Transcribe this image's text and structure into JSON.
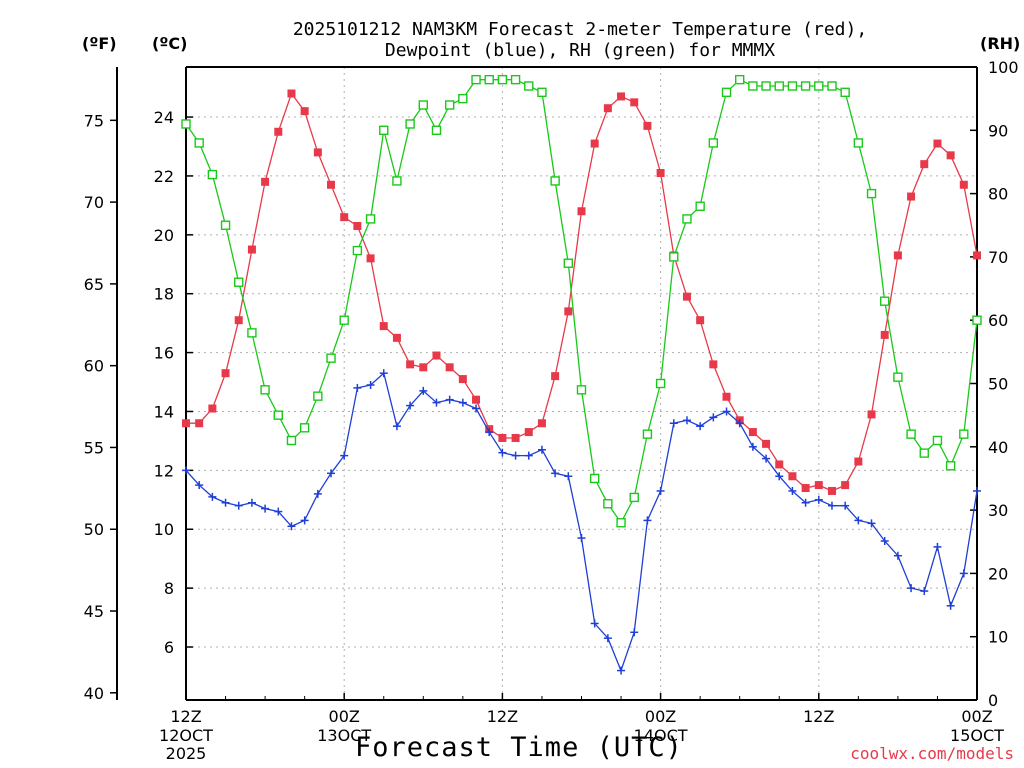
{
  "title_line1": "2025101212 NAM3KM Forecast 2-meter Temperature (red),",
  "title_line2": "Dewpoint (blue), RH (green) for MMMX",
  "unit_f": "(ºF)",
  "unit_c": "(ºC)",
  "unit_rh": "(RH)",
  "x_title": "Forecast Time (UTC)",
  "credit": "coolwx.com/models",
  "colors": {
    "temperature": "#e8394a",
    "dewpoint": "#1f3fd6",
    "rh": "#19c919"
  },
  "chart_data": {
    "type": "line",
    "x_label": "Forecast Time (UTC)",
    "x_hours": [
      0,
      1,
      2,
      3,
      4,
      5,
      6,
      7,
      8,
      9,
      10,
      11,
      12,
      13,
      14,
      15,
      16,
      17,
      18,
      19,
      20,
      21,
      22,
      23,
      24,
      25,
      26,
      27,
      28,
      29,
      30,
      31,
      32,
      33,
      34,
      35,
      36,
      37,
      38,
      39,
      40,
      41,
      42,
      43,
      44,
      45,
      46,
      47,
      48,
      49,
      50,
      51,
      52,
      53,
      54,
      55,
      56,
      57,
      58,
      59,
      60
    ],
    "xlim": [
      0,
      60
    ],
    "x_ticks": [
      {
        "hour": 0,
        "label1": "12Z",
        "label2": "12OCT",
        "label3": "2025"
      },
      {
        "hour": 12,
        "label1": "00Z",
        "label2": "13OCT",
        "label3": ""
      },
      {
        "hour": 24,
        "label1": "12Z",
        "label2": "",
        "label3": ""
      },
      {
        "hour": 36,
        "label1": "00Z",
        "label2": "14OCT",
        "label3": ""
      },
      {
        "hour": 48,
        "label1": "12Z",
        "label2": "",
        "label3": ""
      },
      {
        "hour": 60,
        "label1": "00Z",
        "label2": "15OCT",
        "label3": ""
      }
    ],
    "celsius_axis": {
      "range": [
        4.2,
        25.7
      ],
      "ticks": [
        6,
        8,
        10,
        12,
        14,
        16,
        18,
        20,
        22,
        24
      ]
    },
    "fahrenheit_axis": {
      "range": [
        39.56,
        78.26
      ],
      "ticks": [
        40,
        45,
        50,
        55,
        60,
        65,
        70,
        75
      ]
    },
    "rh_axis": {
      "range": [
        0,
        100
      ],
      "ticks": [
        0,
        10,
        20,
        30,
        40,
        50,
        60,
        70,
        80,
        90,
        100
      ]
    },
    "series": [
      {
        "name": "2-meter Temperature",
        "unit": "C",
        "marker": "filled-square",
        "values": [
          13.6,
          13.6,
          14.1,
          15.3,
          17.1,
          19.5,
          21.8,
          23.5,
          24.8,
          24.2,
          22.8,
          21.7,
          20.6,
          20.3,
          19.2,
          16.9,
          16.5,
          15.6,
          15.5,
          15.9,
          15.5,
          15.1,
          14.4,
          13.4,
          13.1,
          13.1,
          13.3,
          13.6,
          15.2,
          17.4,
          20.8,
          23.1,
          24.3,
          24.7,
          24.5,
          23.7,
          22.1,
          19.3,
          17.9,
          17.1,
          15.6,
          14.5,
          13.7,
          13.3,
          12.9,
          12.2,
          11.8,
          11.4,
          11.5,
          11.3,
          11.5,
          12.3,
          13.9,
          16.6,
          19.3,
          21.3,
          22.4,
          23.1,
          22.7,
          21.7,
          19.3
        ]
      },
      {
        "name": "Dewpoint",
        "unit": "C",
        "marker": "plus",
        "values": [
          12.0,
          11.5,
          11.1,
          10.9,
          10.8,
          10.9,
          10.7,
          10.6,
          10.1,
          10.3,
          11.2,
          11.9,
          12.5,
          14.8,
          14.9,
          15.3,
          13.5,
          14.2,
          14.7,
          14.3,
          14.4,
          14.3,
          14.1,
          13.3,
          12.6,
          12.5,
          12.5,
          12.7,
          11.9,
          11.8,
          9.7,
          6.8,
          6.3,
          5.2,
          6.5,
          10.3,
          11.3,
          13.6,
          13.7,
          13.5,
          13.8,
          14.0,
          13.6,
          12.8,
          12.4,
          11.8,
          11.3,
          10.9,
          11.0,
          10.8,
          10.8,
          10.3,
          10.2,
          9.6,
          9.1,
          8.0,
          7.9,
          9.4,
          7.4,
          8.5,
          11.3
        ]
      },
      {
        "name": "RH",
        "unit": "%",
        "marker": "open-square",
        "values": [
          91,
          88,
          83,
          75,
          66,
          58,
          49,
          45,
          41,
          43,
          48,
          54,
          60,
          71,
          76,
          90,
          82,
          91,
          94,
          90,
          94,
          95,
          98,
          98,
          98,
          98,
          97,
          96,
          82,
          69,
          49,
          35,
          31,
          28,
          32,
          42,
          50,
          70,
          76,
          78,
          88,
          96,
          98,
          97,
          97,
          97,
          97,
          97,
          97,
          97,
          96,
          88,
          80,
          63,
          51,
          42,
          39,
          41,
          37,
          42,
          60
        ]
      }
    ]
  }
}
